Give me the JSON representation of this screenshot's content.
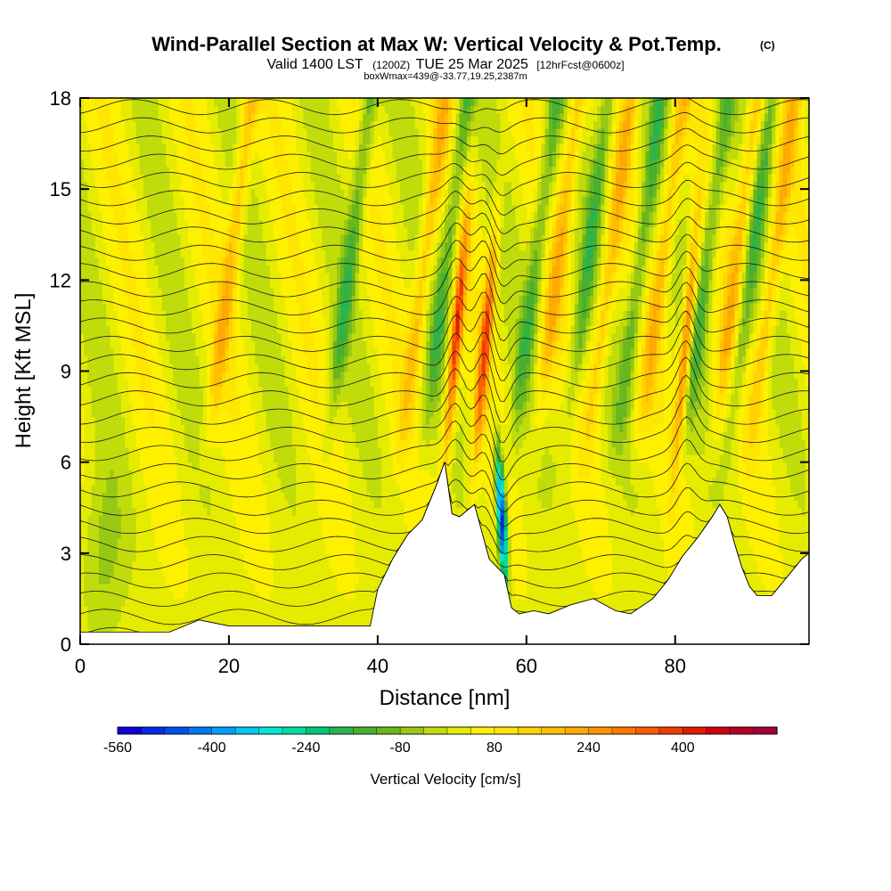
{
  "chart_data": {
    "type": "heatmap",
    "title": "Wind-Parallel Section at Max W: Vertical Velocity & Pot.Temp.",
    "title_mark": "(C)",
    "subtitle_parts": {
      "valid": "Valid 1400 LST",
      "utc": "(1200Z)",
      "date": "TUE 25 Mar 2025",
      "forecast": "[12hrFcst@0600z]"
    },
    "subtitle2": "boxWmax=439@-33.77,19.25,2387m",
    "xlabel": "Distance [nm]",
    "ylabel": "Height [Kft MSL]",
    "xlim": [
      0,
      98
    ],
    "ylim": [
      0,
      18
    ],
    "xticks": [
      0,
      20,
      40,
      60,
      80
    ],
    "yticks": [
      0,
      3,
      6,
      9,
      12,
      15,
      18
    ],
    "terrain_kft": [
      [
        0,
        0.4
      ],
      [
        6,
        0.4
      ],
      [
        12,
        0.4
      ],
      [
        16,
        0.8
      ],
      [
        20,
        0.6
      ],
      [
        24,
        0.6
      ],
      [
        30,
        0.6
      ],
      [
        36,
        0.6
      ],
      [
        39,
        0.6
      ],
      [
        40,
        1.8
      ],
      [
        42,
        2.8
      ],
      [
        44,
        3.6
      ],
      [
        46,
        4.1
      ],
      [
        48,
        5.3
      ],
      [
        49,
        6.0
      ],
      [
        50,
        4.3
      ],
      [
        51,
        4.2
      ],
      [
        53,
        4.6
      ],
      [
        55,
        2.8
      ],
      [
        57,
        2.3
      ],
      [
        58,
        1.2
      ],
      [
        59,
        1.0
      ],
      [
        61,
        1.1
      ],
      [
        63,
        1.0
      ],
      [
        66,
        1.3
      ],
      [
        69,
        1.5
      ],
      [
        72,
        1.1
      ],
      [
        74,
        1.0
      ],
      [
        77,
        1.5
      ],
      [
        79,
        2.1
      ],
      [
        81,
        2.9
      ],
      [
        83,
        3.5
      ],
      [
        85,
        4.2
      ],
      [
        86,
        4.6
      ],
      [
        87,
        4.2
      ],
      [
        88,
        3.3
      ],
      [
        89,
        2.5
      ],
      [
        90,
        1.9
      ],
      [
        91,
        1.6
      ],
      [
        93,
        1.6
      ],
      [
        95,
        2.2
      ],
      [
        97,
        2.8
      ],
      [
        98,
        3.0
      ]
    ],
    "updraft_cores": [
      {
        "x": 50.5,
        "w_cms": 439
      },
      {
        "x": 54.5,
        "w_cms": 380
      },
      {
        "x": 81.5,
        "w_cms": 360
      }
    ],
    "downdraft_cores": [
      {
        "x": 56.5,
        "w_cms": -560
      }
    ],
    "theta_contours_count": 30,
    "colorbar": {
      "title": "Vertical Velocity [cm/s]",
      "min": -560,
      "max": 560,
      "step": 40,
      "tick_labels": [
        "-560",
        "-400",
        "-240",
        "-80",
        "80",
        "240",
        "400"
      ],
      "colors": [
        "#1000d8",
        "#0a28e6",
        "#0050f0",
        "#0078f5",
        "#00a0f5",
        "#00c8f0",
        "#00e6d2",
        "#00dca0",
        "#00c878",
        "#28b450",
        "#48b030",
        "#68b81e",
        "#98c814",
        "#c0dc0a",
        "#e6ec00",
        "#fff000",
        "#ffe600",
        "#ffd200",
        "#ffbe00",
        "#ffaa00",
        "#ff9600",
        "#ff7800",
        "#ff5a00",
        "#f03c00",
        "#e01e00",
        "#d00010",
        "#b80028",
        "#a00040"
      ]
    }
  }
}
